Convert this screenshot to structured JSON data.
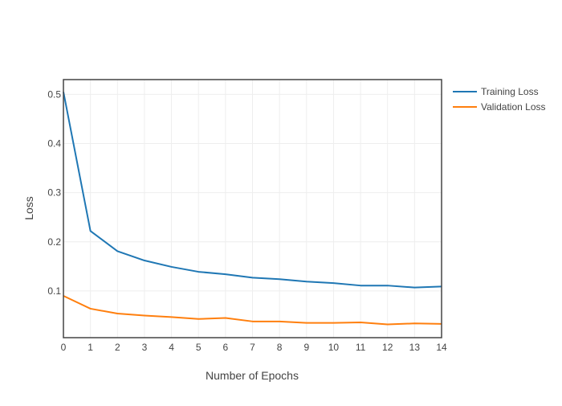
{
  "chart_data": {
    "type": "line",
    "title": "",
    "xlabel": "Number of Epochs",
    "ylabel": "Loss",
    "xlim": [
      0,
      14
    ],
    "ylim": [
      0.005,
      0.53
    ],
    "xticks": [
      0,
      1,
      2,
      3,
      4,
      5,
      6,
      7,
      8,
      9,
      10,
      11,
      12,
      13,
      14
    ],
    "yticks": [
      0.1,
      0.2,
      0.3,
      0.4,
      0.5
    ],
    "grid": true,
    "legend_position": "top-right outside",
    "x": [
      0,
      1,
      2,
      3,
      4,
      5,
      6,
      7,
      8,
      9,
      10,
      11,
      12,
      13,
      14
    ],
    "series": [
      {
        "name": "Training Loss",
        "color": "#1f77b4",
        "values": [
          0.505,
          0.222,
          0.181,
          0.162,
          0.149,
          0.139,
          0.134,
          0.127,
          0.124,
          0.119,
          0.116,
          0.111,
          0.111,
          0.107,
          0.109
        ]
      },
      {
        "name": "Validation Loss",
        "color": "#ff7f0e",
        "values": [
          0.09,
          0.064,
          0.054,
          0.05,
          0.047,
          0.043,
          0.045,
          0.038,
          0.038,
          0.035,
          0.035,
          0.036,
          0.032,
          0.034,
          0.033
        ]
      }
    ]
  }
}
